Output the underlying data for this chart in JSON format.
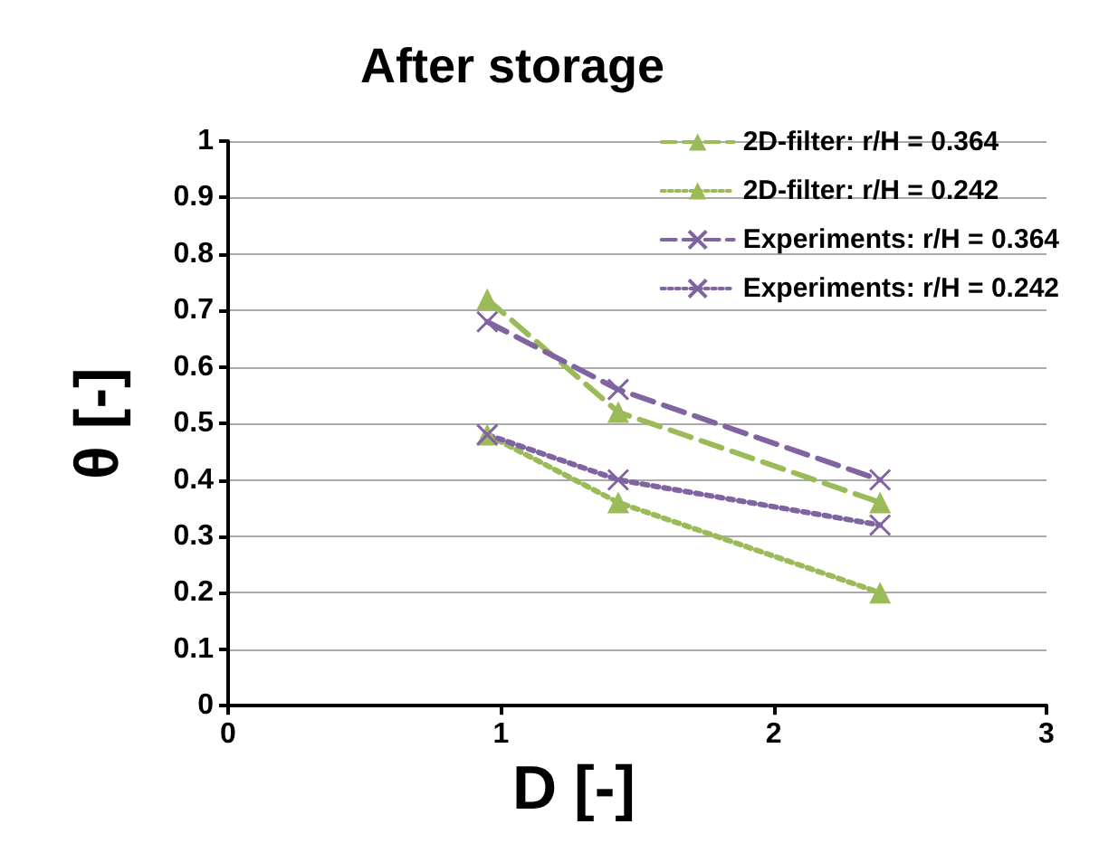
{
  "chart_data": {
    "type": "line",
    "title": "After storage",
    "xlabel": "D [-]",
    "ylabel": "θ [-]",
    "series": [
      {
        "name": "2D-filter: r/H = 0.364",
        "color": "#9bbb59",
        "marker": "triangle",
        "line_style": "dashed",
        "x": [
          0.95,
          1.43,
          2.39
        ],
        "values": [
          0.72,
          0.52,
          0.36
        ]
      },
      {
        "name": "2D-filter: r/H = 0.242",
        "color": "#9bbb59",
        "marker": "triangle",
        "line_style": "dotted",
        "x": [
          0.95,
          1.43,
          2.39
        ],
        "values": [
          0.48,
          0.36,
          0.2
        ]
      },
      {
        "name": "Experiments: r/H = 0.364",
        "color": "#8064a2",
        "marker": "cross",
        "line_style": "dashed",
        "x": [
          0.95,
          1.43,
          2.39
        ],
        "values": [
          0.68,
          0.56,
          0.4
        ]
      },
      {
        "name": "Experiments: r/H = 0.242",
        "color": "#8064a2",
        "marker": "cross",
        "line_style": "dotted",
        "x": [
          0.95,
          1.43,
          2.39
        ],
        "values": [
          0.48,
          0.4,
          0.32
        ]
      }
    ],
    "xlim": [
      0,
      3
    ],
    "xticks": [
      0,
      1,
      2,
      3
    ],
    "ylim": [
      0,
      1
    ],
    "yticks": [
      0,
      0.1,
      0.2,
      0.3,
      0.4,
      0.5,
      0.6,
      0.7,
      0.8,
      0.9,
      1
    ],
    "grid": "y",
    "legend": "top right"
  }
}
